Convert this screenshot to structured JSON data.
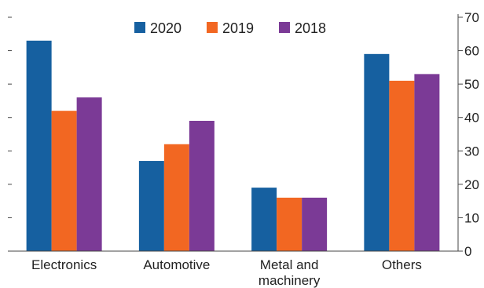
{
  "chart_data": {
    "type": "bar",
    "categories": [
      "Electronics",
      "Automotive",
      "Metal and machinery",
      "Others"
    ],
    "category_lines": [
      [
        "Electronics"
      ],
      [
        "Automotive"
      ],
      [
        "Metal and",
        "machinery"
      ],
      [
        "Others"
      ]
    ],
    "series": [
      {
        "name": "2020",
        "color": "#1660a0",
        "values": [
          63,
          27,
          19,
          59
        ]
      },
      {
        "name": "2019",
        "color": "#f26722",
        "values": [
          42,
          32,
          16,
          51
        ]
      },
      {
        "name": "2018",
        "color": "#7b3a96",
        "values": [
          46,
          39,
          16,
          53
        ]
      }
    ],
    "ylim": [
      0,
      70
    ],
    "yticks": [
      0,
      10,
      20,
      30,
      40,
      50,
      60,
      70
    ],
    "y_axis_side": "right",
    "left_axis_ticks_unlabeled": true,
    "legend_position": "top",
    "grid": false,
    "title": "",
    "xlabel": "",
    "ylabel": ""
  }
}
